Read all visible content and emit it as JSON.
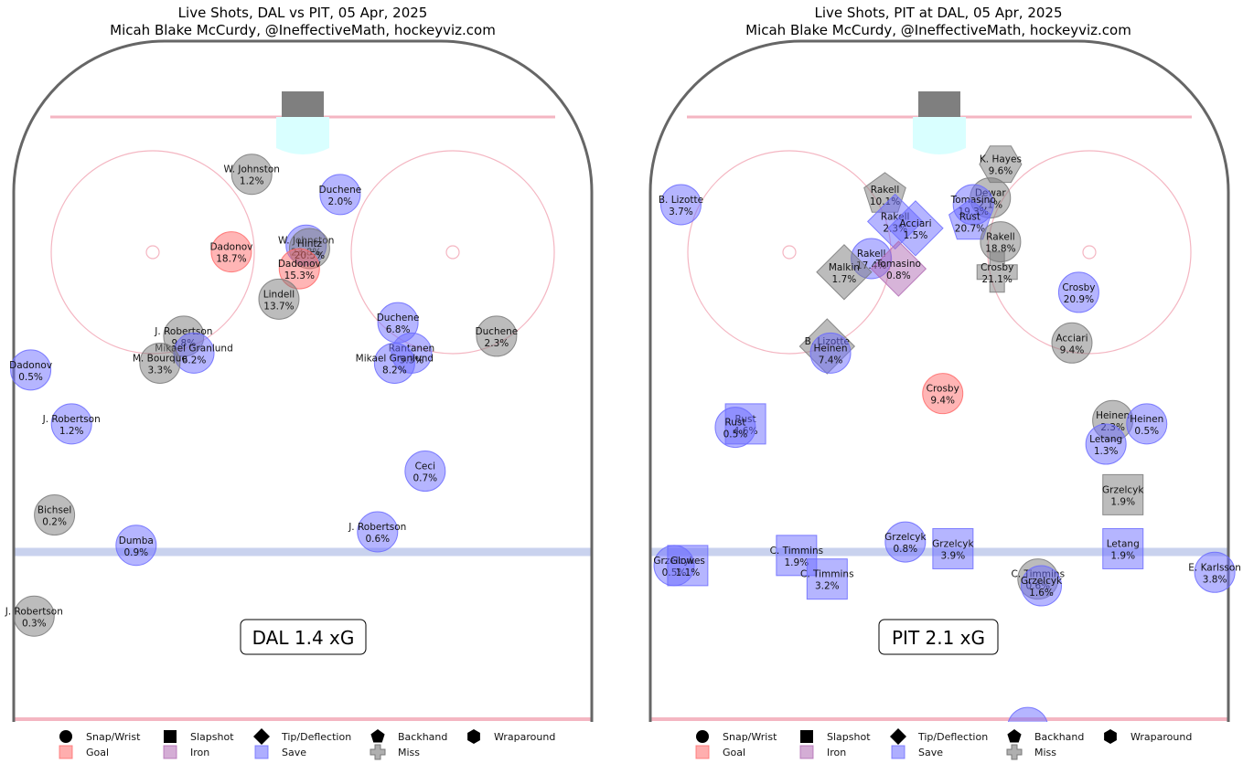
{
  "colors": {
    "goal": "#ff6b6b",
    "iron": "#b06ab3",
    "save": "#6b6bff",
    "miss": "#7a7a7a",
    "rink_outline": "#666666",
    "red_line": "#f4b6c2",
    "blue_line": "#c9d2ee",
    "net": "#7f7f7f",
    "crease": "#d9ffff"
  },
  "legend": {
    "shapes": [
      {
        "shape": "circle",
        "label": "Snap/Wrist"
      },
      {
        "shape": "square",
        "label": "Slapshot"
      },
      {
        "shape": "diamond",
        "label": "Tip/Deflection"
      },
      {
        "shape": "pentagon",
        "label": "Backhand"
      },
      {
        "shape": "hexagon",
        "label": "Wraparound"
      }
    ],
    "outcomes": [
      {
        "outcome": "goal",
        "label": "Goal"
      },
      {
        "outcome": "iron",
        "label": "Iron"
      },
      {
        "outcome": "save",
        "label": "Save"
      },
      {
        "outcome": "miss",
        "label": "Miss"
      }
    ]
  },
  "chart_data": [
    {
      "type": "scatter",
      "title": "Live Shots, DAL vs PIT, 05 Apr, 2025",
      "subtitle": "Micah Blake McCurdy, @IneffectiveMath, hockeyviz.com",
      "summary": "DAL 1.4 xG",
      "xlim": [
        -42.5,
        42.5
      ],
      "ylim": [
        0,
        89
      ],
      "shots": [
        {
          "player": "W. Johnston",
          "xg": "1.2%",
          "x": -7.5,
          "y": 80.5,
          "shape": "circle",
          "outcome": "miss"
        },
        {
          "player": "Duchene",
          "xg": "2.0%",
          "x": 5.5,
          "y": 77.5,
          "shape": "circle",
          "outcome": "save"
        },
        {
          "player": "Dadonov",
          "xg": "18.7%",
          "x": -10.5,
          "y": 69.0,
          "shape": "circle",
          "outcome": "goal"
        },
        {
          "player": "W. Johnston",
          "xg": "23.8%",
          "x": 0.5,
          "y": 70.0,
          "shape": "circle",
          "outcome": "save"
        },
        {
          "player": "Hintz",
          "xg": "20.5%",
          "x": 1.0,
          "y": 69.5,
          "shape": "circle",
          "outcome": "miss"
        },
        {
          "player": "Dadonov",
          "xg": "15.3%",
          "x": -0.5,
          "y": 66.5,
          "shape": "circle",
          "outcome": "goal"
        },
        {
          "player": "Lindell",
          "xg": "13.7%",
          "x": -3.5,
          "y": 62.0,
          "shape": "circle",
          "outcome": "miss"
        },
        {
          "player": "J. Robertson",
          "xg": "9.8%",
          "x": -17.5,
          "y": 56.5,
          "shape": "circle",
          "outcome": "miss"
        },
        {
          "player": "Mikael Granlund",
          "xg": "6.2%",
          "x": -16.0,
          "y": 54.0,
          "shape": "circle",
          "outcome": "save"
        },
        {
          "player": "M. Bourque",
          "xg": "3.3%",
          "x": -21.0,
          "y": 52.5,
          "shape": "circle",
          "outcome": "miss"
        },
        {
          "player": "Dadonov",
          "xg": "0.5%",
          "x": -40.0,
          "y": 51.5,
          "shape": "circle",
          "outcome": "save"
        },
        {
          "player": "Duchene",
          "xg": "6.8%",
          "x": 14.0,
          "y": 58.5,
          "shape": "circle",
          "outcome": "save"
        },
        {
          "player": "Duchene",
          "xg": "2.3%",
          "x": 28.5,
          "y": 56.5,
          "shape": "circle",
          "outcome": "miss"
        },
        {
          "player": "Rantanen",
          "xg": "5.3%",
          "x": 16.0,
          "y": 54.0,
          "shape": "circle",
          "outcome": "save"
        },
        {
          "player": "Mikael Granlund",
          "xg": "8.2%",
          "x": 13.5,
          "y": 52.5,
          "shape": "circle",
          "outcome": "save"
        },
        {
          "player": "J. Robertson",
          "xg": "1.2%",
          "x": -34.0,
          "y": 43.5,
          "shape": "circle",
          "outcome": "save"
        },
        {
          "player": "Ceci",
          "xg": "0.7%",
          "x": 18.0,
          "y": 36.5,
          "shape": "circle",
          "outcome": "save"
        },
        {
          "player": "Bichsel",
          "xg": "0.2%",
          "x": -36.5,
          "y": 30.0,
          "shape": "circle",
          "outcome": "miss"
        },
        {
          "player": "J. Robertson",
          "xg": "0.6%",
          "x": 11.0,
          "y": 27.5,
          "shape": "circle",
          "outcome": "save"
        },
        {
          "player": "Dumba",
          "xg": "0.9%",
          "x": -24.5,
          "y": 25.5,
          "shape": "circle",
          "outcome": "save"
        },
        {
          "player": "J. Robertson",
          "xg": "0.3%",
          "x": -39.5,
          "y": 15.0,
          "shape": "circle",
          "outcome": "miss"
        }
      ]
    },
    {
      "type": "scatter",
      "title": "Live Shots, PIT at DAL, 05 Apr, 2025",
      "subtitle": "Micah Blake McCurdy, @IneffectiveMath, hockeyviz.com",
      "summary": "PIT 2.1 xG",
      "xlim": [
        -42.5,
        42.5
      ],
      "ylim": [
        0,
        89
      ],
      "shots": [
        {
          "player": "K. Hayes",
          "xg": "9.6%",
          "x": 9.0,
          "y": 82.0,
          "shape": "hexagon",
          "outcome": "miss"
        },
        {
          "player": "Rakell",
          "xg": "10.1%",
          "x": -8.0,
          "y": 77.5,
          "shape": "pentagon",
          "outcome": "miss"
        },
        {
          "player": "Dewar",
          "xg": "2.1%",
          "x": 7.5,
          "y": 77.0,
          "shape": "circle",
          "outcome": "miss"
        },
        {
          "player": "Tomasino",
          "xg": "19.3%",
          "x": 5.0,
          "y": 76.0,
          "shape": "circle",
          "outcome": "save"
        },
        {
          "player": "B. Lizotte",
          "xg": "3.7%",
          "x": -38.0,
          "y": 76.0,
          "shape": "circle",
          "outcome": "save"
        },
        {
          "player": "Rakell",
          "xg": "2.3%",
          "x": -6.5,
          "y": 73.5,
          "shape": "diamond",
          "outcome": "save"
        },
        {
          "player": "Acciari",
          "xg": "1.5%",
          "x": -3.5,
          "y": 72.5,
          "shape": "diamond",
          "outcome": "save"
        },
        {
          "player": "Rust",
          "xg": "20.7%",
          "x": 4.5,
          "y": 73.5,
          "shape": "pentagon",
          "outcome": "save"
        },
        {
          "player": "Rakell",
          "xg": "18.8%",
          "x": 9.0,
          "y": 70.5,
          "shape": "circle",
          "outcome": "miss"
        },
        {
          "player": "Crosby",
          "xg": "21.1%",
          "x": 8.5,
          "y": 66.0,
          "shape": "cross",
          "outcome": "miss"
        },
        {
          "player": "Rakell",
          "xg": "17.4%",
          "x": -10.0,
          "y": 68.0,
          "shape": "circle",
          "outcome": "save"
        },
        {
          "player": "Tomasino",
          "xg": "0.8%",
          "x": -6.0,
          "y": 66.5,
          "shape": "diamond",
          "outcome": "iron"
        },
        {
          "player": "Malkin",
          "xg": "1.7%",
          "x": -14.0,
          "y": 66.0,
          "shape": "diamond",
          "outcome": "miss"
        },
        {
          "player": "Crosby",
          "xg": "20.9%",
          "x": 20.5,
          "y": 63.0,
          "shape": "circle",
          "outcome": "save"
        },
        {
          "player": "Acciari",
          "xg": "9.4%",
          "x": 19.5,
          "y": 55.5,
          "shape": "circle",
          "outcome": "miss"
        },
        {
          "player": "B. Lizotte",
          "xg": "",
          "x": -16.5,
          "y": 55.0,
          "shape": "diamond",
          "outcome": "miss"
        },
        {
          "player": "Heinen",
          "xg": "7.4%",
          "x": -16.0,
          "y": 54.0,
          "shape": "circle",
          "outcome": "save"
        },
        {
          "player": "Crosby",
          "xg": "9.4%",
          "x": 0.5,
          "y": 48.0,
          "shape": "circle",
          "outcome": "goal"
        },
        {
          "player": "Rust",
          "xg": "4.6%",
          "x": -28.5,
          "y": 43.5,
          "shape": "square",
          "outcome": "save"
        },
        {
          "player": "Rust",
          "xg": "0.5%",
          "x": -30.0,
          "y": 43.0,
          "shape": "circle",
          "outcome": "save"
        },
        {
          "player": "Heinen",
          "xg": "2.3%",
          "x": 25.5,
          "y": 44.0,
          "shape": "circle",
          "outcome": "miss"
        },
        {
          "player": "Heinen",
          "xg": "0.5%",
          "x": 30.5,
          "y": 43.5,
          "shape": "circle",
          "outcome": "save"
        },
        {
          "player": "Letang",
          "xg": "1.3%",
          "x": 24.5,
          "y": 40.5,
          "shape": "circle",
          "outcome": "save"
        },
        {
          "player": "Grzelcyk",
          "xg": "1.9%",
          "x": 27.0,
          "y": 33.0,
          "shape": "square",
          "outcome": "miss"
        },
        {
          "player": "Grzelcyk",
          "xg": "0.5%",
          "x": -39.0,
          "y": 22.5,
          "shape": "circle",
          "outcome": "save"
        },
        {
          "player": "Glowes",
          "xg": "1.1%",
          "x": -37.0,
          "y": 22.5,
          "shape": "square",
          "outcome": "save"
        },
        {
          "player": "C. Timmins",
          "xg": "1.9%",
          "x": -21.0,
          "y": 24.0,
          "shape": "square",
          "outcome": "save"
        },
        {
          "player": "C. Timmins",
          "xg": "3.2%",
          "x": -16.5,
          "y": 20.5,
          "shape": "square",
          "outcome": "save"
        },
        {
          "player": "Grzelcyk",
          "xg": "0.8%",
          "x": -5.0,
          "y": 26.0,
          "shape": "circle",
          "outcome": "save"
        },
        {
          "player": "Grzelcyk",
          "xg": "3.9%",
          "x": 2.0,
          "y": 25.0,
          "shape": "square",
          "outcome": "save"
        },
        {
          "player": "Letang",
          "xg": "1.9%",
          "x": 27.0,
          "y": 25.0,
          "shape": "square",
          "outcome": "save"
        },
        {
          "player": "E. Karlsson",
          "xg": "3.8%",
          "x": 40.5,
          "y": 21.5,
          "shape": "circle",
          "outcome": "save"
        },
        {
          "player": "C. Timmins",
          "xg": "0.6%",
          "x": 14.5,
          "y": 20.5,
          "shape": "circle",
          "outcome": "miss"
        },
        {
          "player": "Grzelcyk",
          "xg": "1.6%",
          "x": 15.0,
          "y": 19.5,
          "shape": "circle",
          "outcome": "save"
        },
        {
          "player": "",
          "xg": "",
          "x": 13.0,
          "y": -1.5,
          "shape": "circle",
          "outcome": "save"
        }
      ]
    }
  ]
}
